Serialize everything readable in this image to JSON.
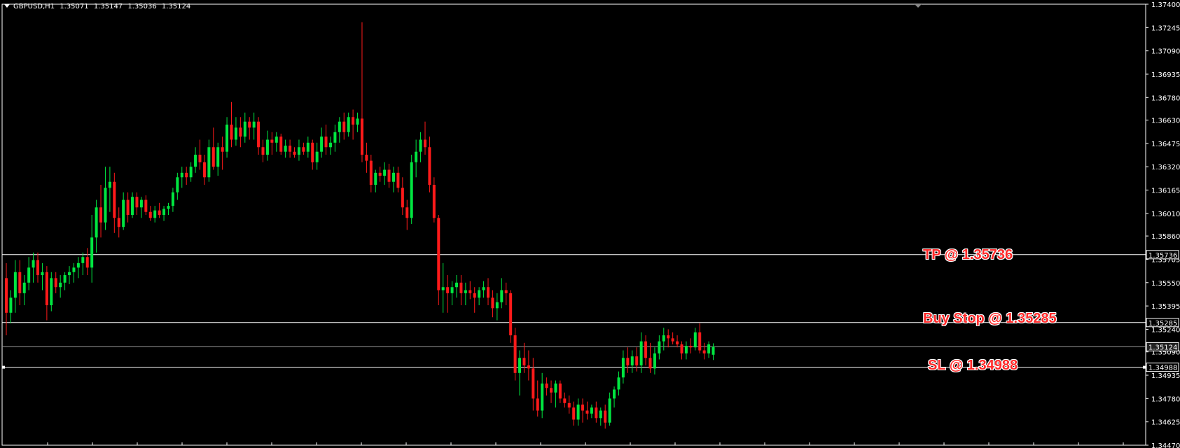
{
  "header": {
    "symbol": "GBPUSD,H1",
    "open": "1.35071",
    "high": "1.35147",
    "low": "1.35036",
    "close": "1.35124"
  },
  "colors": {
    "background": "#000000",
    "bull": "#00e640",
    "bear": "#ff1a1a",
    "axis": "#ffffff",
    "level_line": "#ffffff",
    "annotation_text": "#ff2a2a"
  },
  "chart_data": {
    "type": "candlestick",
    "ylim": [
      1.3447,
      1.374
    ],
    "y_ticks": [
      "1.37400",
      "1.37245",
      "1.37090",
      "1.36935",
      "1.36780",
      "1.36630",
      "1.36475",
      "1.36320",
      "1.36165",
      "1.36010",
      "1.35860",
      "1.35705",
      "1.35550",
      "1.35395",
      "1.35240",
      "1.35090",
      "1.34935",
      "1.34780",
      "1.34625",
      "1.34470"
    ],
    "levels": [
      {
        "label": "1.35736",
        "price": 1.35736,
        "annotation": "TP @ 1.35736"
      },
      {
        "label": "1.35285",
        "price": 1.35285,
        "annotation": "Buy Stop @ 1.35285"
      },
      {
        "label": "1.35124",
        "price": 1.35124,
        "annotation": ""
      },
      {
        "label": "1.34988",
        "price": 1.34988,
        "annotation": "SL @ 1.34988"
      }
    ],
    "ohlc": [
      [
        1.3558,
        1.3568,
        1.352,
        1.3535
      ],
      [
        1.3535,
        1.355,
        1.3528,
        1.3545
      ],
      [
        1.3545,
        1.357,
        1.3535,
        1.3562
      ],
      [
        1.3562,
        1.357,
        1.354,
        1.3548
      ],
      [
        1.3548,
        1.356,
        1.354,
        1.3555
      ],
      [
        1.3555,
        1.3572,
        1.355,
        1.3565
      ],
      [
        1.3565,
        1.3575,
        1.3555,
        1.357
      ],
      [
        1.357,
        1.3575,
        1.3555,
        1.356
      ],
      [
        1.356,
        1.3568,
        1.355,
        1.3562
      ],
      [
        1.3562,
        1.3566,
        1.353,
        1.354
      ],
      [
        1.354,
        1.3562,
        1.3536,
        1.3558
      ],
      [
        1.3558,
        1.3562,
        1.3548,
        1.3552
      ],
      [
        1.3552,
        1.356,
        1.3545,
        1.3555
      ],
      [
        1.3555,
        1.3562,
        1.355,
        1.356
      ],
      [
        1.356,
        1.3566,
        1.3554,
        1.3562
      ],
      [
        1.3562,
        1.3568,
        1.3555,
        1.3565
      ],
      [
        1.3565,
        1.3572,
        1.3558,
        1.3568
      ],
      [
        1.3568,
        1.3575,
        1.356,
        1.3572
      ],
      [
        1.3572,
        1.3578,
        1.356,
        1.3565
      ],
      [
        1.3565,
        1.36,
        1.3555,
        1.3585
      ],
      [
        1.3585,
        1.361,
        1.3575,
        1.3605
      ],
      [
        1.3605,
        1.362,
        1.3585,
        1.3595
      ],
      [
        1.3595,
        1.3632,
        1.359,
        1.3618
      ],
      [
        1.3618,
        1.3632,
        1.3602,
        1.3622
      ],
      [
        1.3622,
        1.3628,
        1.3588,
        1.3598
      ],
      [
        1.3598,
        1.3605,
        1.3585,
        1.3592
      ],
      [
        1.3592,
        1.3615,
        1.359,
        1.361
      ],
      [
        1.361,
        1.3615,
        1.3595,
        1.36
      ],
      [
        1.36,
        1.3615,
        1.3598,
        1.3612
      ],
      [
        1.3612,
        1.3615,
        1.36,
        1.3605
      ],
      [
        1.3605,
        1.3612,
        1.3598,
        1.361
      ],
      [
        1.361,
        1.3613,
        1.36,
        1.3602
      ],
      [
        1.3602,
        1.3606,
        1.3596,
        1.3598
      ],
      [
        1.3598,
        1.3606,
        1.3595,
        1.3603
      ],
      [
        1.3603,
        1.3608,
        1.3598,
        1.36
      ],
      [
        1.36,
        1.3606,
        1.3596,
        1.3604
      ],
      [
        1.3604,
        1.3608,
        1.36,
        1.3606
      ],
      [
        1.3606,
        1.3618,
        1.3602,
        1.3615
      ],
      [
        1.3615,
        1.3628,
        1.361,
        1.3625
      ],
      [
        1.3625,
        1.3632,
        1.3618,
        1.3628
      ],
      [
        1.3628,
        1.3632,
        1.362,
        1.3625
      ],
      [
        1.3625,
        1.3635,
        1.3622,
        1.3632
      ],
      [
        1.3632,
        1.3645,
        1.3628,
        1.364
      ],
      [
        1.364,
        1.365,
        1.363,
        1.3635
      ],
      [
        1.3635,
        1.364,
        1.362,
        1.3625
      ],
      [
        1.3625,
        1.365,
        1.3622,
        1.3645
      ],
      [
        1.3645,
        1.3658,
        1.363,
        1.3632
      ],
      [
        1.3632,
        1.3648,
        1.3626,
        1.3645
      ],
      [
        1.3645,
        1.3652,
        1.363,
        1.3642
      ],
      [
        1.3642,
        1.3665,
        1.3638,
        1.366
      ],
      [
        1.366,
        1.3675,
        1.3645,
        1.365
      ],
      [
        1.365,
        1.3665,
        1.3646,
        1.3658
      ],
      [
        1.3658,
        1.3665,
        1.3645,
        1.3652
      ],
      [
        1.3652,
        1.3668,
        1.3648,
        1.3662
      ],
      [
        1.3662,
        1.3665,
        1.365,
        1.3658
      ],
      [
        1.3658,
        1.3668,
        1.365,
        1.3662
      ],
      [
        1.3662,
        1.3665,
        1.364,
        1.3645
      ],
      [
        1.3645,
        1.365,
        1.3635,
        1.364
      ],
      [
        1.364,
        1.3656,
        1.3636,
        1.365
      ],
      [
        1.365,
        1.3655,
        1.364,
        1.3648
      ],
      [
        1.3648,
        1.3655,
        1.3642,
        1.3652
      ],
      [
        1.3652,
        1.3654,
        1.364,
        1.3642
      ],
      [
        1.3642,
        1.365,
        1.3638,
        1.3646
      ],
      [
        1.3646,
        1.365,
        1.3638,
        1.3642
      ],
      [
        1.3642,
        1.3645,
        1.3638,
        1.364
      ],
      [
        1.364,
        1.365,
        1.3636,
        1.3645
      ],
      [
        1.3645,
        1.3648,
        1.364,
        1.3642
      ],
      [
        1.3642,
        1.3652,
        1.3638,
        1.3648
      ],
      [
        1.3648,
        1.365,
        1.363,
        1.3635
      ],
      [
        1.3635,
        1.3648,
        1.363,
        1.3642
      ],
      [
        1.3642,
        1.3658,
        1.3638,
        1.3652
      ],
      [
        1.3652,
        1.366,
        1.364,
        1.3645
      ],
      [
        1.3645,
        1.3652,
        1.364,
        1.3648
      ],
      [
        1.3648,
        1.366,
        1.3642,
        1.3655
      ],
      [
        1.3655,
        1.3665,
        1.3648,
        1.3662
      ],
      [
        1.3662,
        1.3668,
        1.365,
        1.3655
      ],
      [
        1.3655,
        1.3668,
        1.3652,
        1.3665
      ],
      [
        1.3665,
        1.367,
        1.365,
        1.366
      ],
      [
        1.366,
        1.3668,
        1.3655,
        1.3664
      ],
      [
        1.3664,
        1.3728,
        1.3635,
        1.364
      ],
      [
        1.364,
        1.3648,
        1.3628,
        1.3636
      ],
      [
        1.3636,
        1.364,
        1.3615,
        1.362
      ],
      [
        1.362,
        1.363,
        1.3615,
        1.3628
      ],
      [
        1.3628,
        1.3632,
        1.3622,
        1.3626
      ],
      [
        1.3626,
        1.3635,
        1.362,
        1.363
      ],
      [
        1.363,
        1.3634,
        1.3618,
        1.3622
      ],
      [
        1.3622,
        1.3632,
        1.3615,
        1.3628
      ],
      [
        1.3628,
        1.3632,
        1.3615,
        1.3618
      ],
      [
        1.3618,
        1.3625,
        1.36,
        1.3605
      ],
      [
        1.3605,
        1.361,
        1.359,
        1.3598
      ],
      [
        1.3598,
        1.364,
        1.3594,
        1.3635
      ],
      [
        1.3635,
        1.365,
        1.3625,
        1.3642
      ],
      [
        1.3642,
        1.3655,
        1.3635,
        1.365
      ],
      [
        1.365,
        1.3662,
        1.364,
        1.3645
      ],
      [
        1.3645,
        1.3652,
        1.3615,
        1.362
      ],
      [
        1.362,
        1.3625,
        1.3595,
        1.3598
      ],
      [
        1.3598,
        1.36,
        1.354,
        1.355
      ],
      [
        1.355,
        1.3568,
        1.3535,
        1.3552
      ],
      [
        1.3552,
        1.356,
        1.3535,
        1.3548
      ],
      [
        1.3548,
        1.3556,
        1.354,
        1.3552
      ],
      [
        1.3552,
        1.356,
        1.3545,
        1.3555
      ],
      [
        1.3555,
        1.356,
        1.354,
        1.3548
      ],
      [
        1.3548,
        1.3555,
        1.354,
        1.355
      ],
      [
        1.355,
        1.3556,
        1.3544,
        1.3548
      ],
      [
        1.3548,
        1.3552,
        1.3535,
        1.3545
      ],
      [
        1.3545,
        1.3552,
        1.354,
        1.355
      ],
      [
        1.355,
        1.3556,
        1.3545,
        1.3552
      ],
      [
        1.3552,
        1.3558,
        1.354,
        1.3545
      ],
      [
        1.3545,
        1.355,
        1.3532,
        1.3538
      ],
      [
        1.3538,
        1.3548,
        1.353,
        1.3542
      ],
      [
        1.3542,
        1.3558,
        1.3538,
        1.355
      ],
      [
        1.355,
        1.3555,
        1.354,
        1.3548
      ],
      [
        1.3548,
        1.355,
        1.3515,
        1.352
      ],
      [
        1.352,
        1.3525,
        1.349,
        1.3495
      ],
      [
        1.3495,
        1.351,
        1.348,
        1.3505
      ],
      [
        1.3505,
        1.3515,
        1.3495,
        1.35
      ],
      [
        1.35,
        1.351,
        1.349,
        1.3498
      ],
      [
        1.3498,
        1.3505,
        1.347,
        1.3478
      ],
      [
        1.3478,
        1.349,
        1.3466,
        1.347
      ],
      [
        1.347,
        1.3495,
        1.3465,
        1.3488
      ],
      [
        1.3488,
        1.3492,
        1.348,
        1.3485
      ],
      [
        1.3485,
        1.349,
        1.3475,
        1.3482
      ],
      [
        1.3482,
        1.349,
        1.3472,
        1.3488
      ],
      [
        1.3488,
        1.349,
        1.3475,
        1.3478
      ],
      [
        1.3478,
        1.3482,
        1.3472,
        1.3475
      ],
      [
        1.3475,
        1.348,
        1.3468,
        1.3472
      ],
      [
        1.3472,
        1.3476,
        1.346,
        1.3464
      ],
      [
        1.3464,
        1.3478,
        1.346,
        1.3474
      ],
      [
        1.3474,
        1.3478,
        1.3462,
        1.347
      ],
      [
        1.347,
        1.3476,
        1.3464,
        1.3468
      ],
      [
        1.3468,
        1.3474,
        1.3465,
        1.3472
      ],
      [
        1.3472,
        1.3476,
        1.3462,
        1.3465
      ],
      [
        1.3465,
        1.3472,
        1.346,
        1.347
      ],
      [
        1.347,
        1.3474,
        1.3458,
        1.3462
      ],
      [
        1.3462,
        1.3482,
        1.346,
        1.3478
      ],
      [
        1.3478,
        1.3486,
        1.3472,
        1.3484
      ],
      [
        1.3484,
        1.3496,
        1.348,
        1.3492
      ],
      [
        1.3492,
        1.351,
        1.3488,
        1.3505
      ],
      [
        1.3505,
        1.3512,
        1.3495,
        1.35
      ],
      [
        1.35,
        1.351,
        1.3495,
        1.3506
      ],
      [
        1.3506,
        1.3512,
        1.3496,
        1.35
      ],
      [
        1.35,
        1.3522,
        1.3495,
        1.3516
      ],
      [
        1.3516,
        1.352,
        1.35,
        1.3505
      ],
      [
        1.3505,
        1.3515,
        1.3495,
        1.3498
      ],
      [
        1.3498,
        1.3512,
        1.3494,
        1.3508
      ],
      [
        1.3508,
        1.352,
        1.3504,
        1.3516
      ],
      [
        1.3516,
        1.3525,
        1.351,
        1.352
      ],
      [
        1.352,
        1.3524,
        1.3512,
        1.3518
      ],
      [
        1.3518,
        1.3522,
        1.3514,
        1.3516
      ],
      [
        1.3516,
        1.352,
        1.3512,
        1.3514
      ],
      [
        1.3514,
        1.3516,
        1.3504,
        1.3508
      ],
      [
        1.3508,
        1.3516,
        1.3504,
        1.3513
      ],
      [
        1.3513,
        1.3518,
        1.3508,
        1.3512
      ],
      [
        1.3512,
        1.3525,
        1.351,
        1.3522
      ],
      [
        1.3522,
        1.3528,
        1.3508,
        1.351
      ],
      [
        1.351,
        1.3515,
        1.3504,
        1.3508
      ],
      [
        1.3508,
        1.3516,
        1.3505,
        1.3514
      ],
      [
        1.35071,
        1.35147,
        1.35036,
        1.35124
      ]
    ]
  },
  "annotations": {
    "tp": "TP @ 1.35736",
    "buy_stop": "Buy Stop @ 1.35285",
    "sl": "SL @ 1.34988"
  }
}
